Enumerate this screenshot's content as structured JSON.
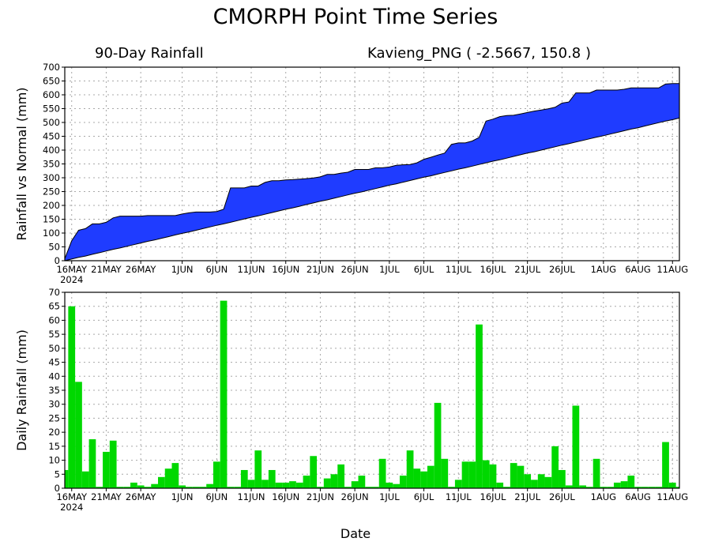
{
  "title": "CMORPH Point Time Series",
  "subtitle_left": "90-Day Rainfall",
  "subtitle_right": "Kavieng_PNG ( -2.5667, 150.8 )",
  "xlabel": "Date",
  "chart_data": [
    {
      "type": "area",
      "ylabel": "Rainfall vs Normal (mm)",
      "ylim": [
        0,
        700
      ],
      "yticks": [
        0,
        50,
        100,
        150,
        200,
        250,
        300,
        350,
        400,
        450,
        500,
        550,
        600,
        650,
        700
      ],
      "xlim": [
        0,
        89
      ],
      "xticks": [
        {
          "day": 1,
          "label": "16MAY",
          "sub": "2024"
        },
        {
          "day": 6,
          "label": "21MAY"
        },
        {
          "day": 11,
          "label": "26MAY"
        },
        {
          "day": 17,
          "label": "1JUN"
        },
        {
          "day": 22,
          "label": "6JUN"
        },
        {
          "day": 27,
          "label": "11JUN"
        },
        {
          "day": 32,
          "label": "16JUN"
        },
        {
          "day": 37,
          "label": "21JUN"
        },
        {
          "day": 42,
          "label": "26JUN"
        },
        {
          "day": 47,
          "label": "1JUL"
        },
        {
          "day": 52,
          "label": "6JUL"
        },
        {
          "day": 57,
          "label": "11JUL"
        },
        {
          "day": 62,
          "label": "16JUL"
        },
        {
          "day": 67,
          "label": "21JUL"
        },
        {
          "day": 72,
          "label": "26JUL"
        },
        {
          "day": 78,
          "label": "1AUG"
        },
        {
          "day": 83,
          "label": "6AUG"
        },
        {
          "day": 88,
          "label": "11AUG"
        }
      ],
      "grid": true,
      "fill_color": "#1f3cff",
      "series": [
        {
          "name": "Actual",
          "values": [
            7,
            72,
            110,
            116,
            133,
            133,
            139,
            155,
            161,
            161,
            161,
            161,
            163,
            163,
            163,
            163,
            163,
            169,
            173,
            176,
            176,
            176,
            178,
            186,
            263,
            263,
            263,
            270,
            270,
            283,
            289,
            289,
            292,
            293,
            295,
            297,
            299,
            303,
            312,
            312,
            317,
            320,
            330,
            330,
            330,
            336,
            336,
            339,
            345,
            347,
            348,
            354,
            367,
            374,
            382,
            389,
            421,
            426,
            426,
            433,
            446,
            505,
            512,
            521,
            525,
            526,
            531,
            536,
            541,
            545,
            549,
            555,
            570,
            574,
            607,
            607,
            607,
            617,
            617,
            617,
            617,
            620,
            625,
            625,
            625,
            625,
            625,
            639,
            641,
            641
          ]
        },
        {
          "name": "Normal",
          "values": [
            0,
            6,
            12,
            17,
            23,
            29,
            35,
            41,
            46,
            52,
            58,
            64,
            70,
            75,
            81,
            87,
            93,
            99,
            104,
            110,
            116,
            122,
            128,
            133,
            139,
            145,
            151,
            157,
            162,
            168,
            174,
            180,
            186,
            191,
            197,
            203,
            209,
            215,
            220,
            226,
            232,
            238,
            244,
            249,
            255,
            261,
            267,
            273,
            278,
            284,
            290,
            296,
            302,
            307,
            313,
            319,
            325,
            331,
            336,
            342,
            348,
            354,
            360,
            365,
            371,
            377,
            383,
            389,
            394,
            400,
            406,
            412,
            418,
            423,
            429,
            435,
            441,
            447,
            452,
            458,
            464,
            470,
            476,
            481,
            487,
            493,
            499,
            505,
            510,
            516
          ]
        }
      ]
    },
    {
      "type": "bar",
      "ylabel": "Daily Rainfall (mm)",
      "ylim": [
        0,
        70
      ],
      "yticks": [
        0,
        5,
        10,
        15,
        20,
        25,
        30,
        35,
        40,
        45,
        50,
        55,
        60,
        65,
        70
      ],
      "xlim": [
        0,
        89
      ],
      "grid": true,
      "bar_color": "#00d800",
      "values": [
        6.5,
        65,
        38,
        6,
        17.5,
        0.5,
        13,
        17,
        0.5,
        0.5,
        2,
        1,
        0.5,
        1.5,
        4,
        7,
        9,
        1,
        0.5,
        0.5,
        0.5,
        1.5,
        9.5,
        67,
        0.5,
        0.5,
        6.5,
        3,
        13.5,
        3,
        6.5,
        2,
        2,
        2.5,
        2,
        4.5,
        11.5,
        0.5,
        3.5,
        5,
        8.5,
        0.5,
        2.5,
        4.5,
        0.5,
        0.5,
        10.5,
        2,
        1.5,
        4.5,
        13.5,
        7,
        6,
        8,
        30.5,
        10.5,
        0.5,
        3,
        9.5,
        9.5,
        58.5,
        10,
        8.5,
        2,
        0.5,
        9,
        8,
        5,
        3,
        5,
        4,
        15,
        6.5,
        1,
        29.5,
        1,
        0.5,
        10.5,
        0.5,
        0.5,
        2,
        2.5,
        4.5,
        0.5,
        0.5,
        0.5,
        0.5,
        16.5,
        2,
        0.5
      ]
    }
  ]
}
